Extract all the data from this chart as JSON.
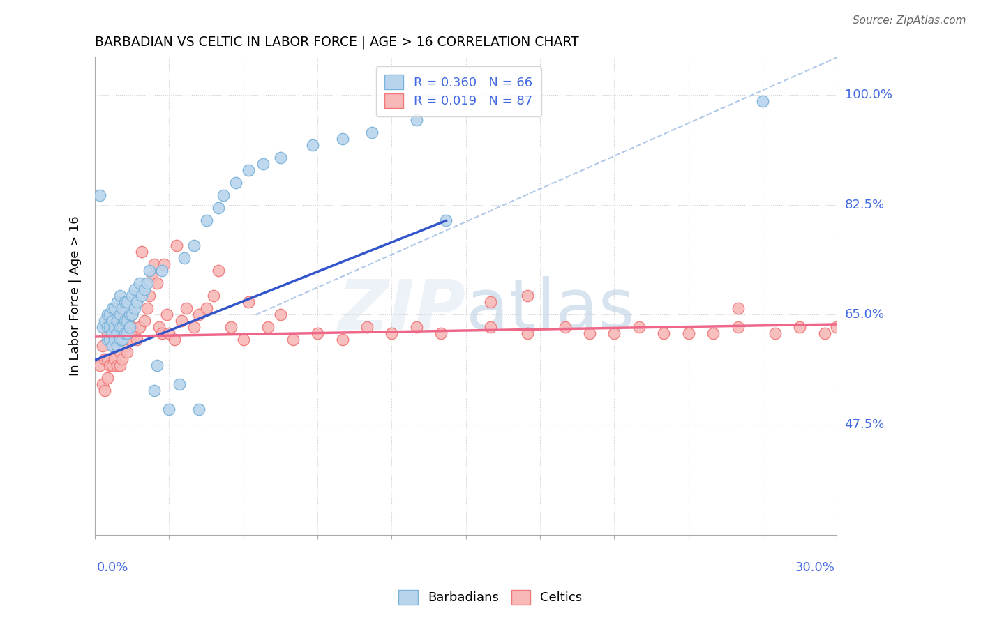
{
  "title": "BARBADIAN VS CELTIC IN LABOR FORCE | AGE > 16 CORRELATION CHART",
  "source": "Source: ZipAtlas.com",
  "ylabel": "In Labor Force | Age > 16",
  "ytick_positions": [
    0.475,
    0.65,
    0.825,
    1.0
  ],
  "ytick_labels": [
    "47.5%",
    "65.0%",
    "82.5%",
    "100.0%"
  ],
  "xlim": [
    0.0,
    0.3
  ],
  "ylim": [
    0.3,
    1.06
  ],
  "barbadian_color": "#7ab3d9",
  "barbadian_fill": "#b8d4ec",
  "celtic_color": "#f07878",
  "celtic_fill": "#f8b8b8",
  "trend_blue": "#3355cc",
  "trend_pink": "#ee6688",
  "ref_line_color": "#b0c8e8",
  "grid_color": "#d0d0d0",
  "axis_label_color": "#4169e1",
  "legend_label_1": "R = 0.360   N = 66",
  "legend_label_2": "R = 0.019   N = 87",
  "barb_trend": [
    0.0,
    0.578,
    0.142,
    0.8
  ],
  "celt_trend": [
    0.0,
    0.615,
    0.3,
    0.635
  ],
  "ref_line": [
    0.065,
    0.65,
    0.3,
    1.06
  ],
  "barbadian_x": [
    0.002,
    0.003,
    0.004,
    0.005,
    0.005,
    0.005,
    0.006,
    0.006,
    0.006,
    0.007,
    0.007,
    0.007,
    0.007,
    0.008,
    0.008,
    0.008,
    0.009,
    0.009,
    0.009,
    0.009,
    0.01,
    0.01,
    0.01,
    0.01,
    0.011,
    0.011,
    0.011,
    0.012,
    0.012,
    0.012,
    0.013,
    0.013,
    0.013,
    0.014,
    0.014,
    0.015,
    0.015,
    0.016,
    0.016,
    0.017,
    0.018,
    0.019,
    0.02,
    0.021,
    0.022,
    0.024,
    0.025,
    0.027,
    0.03,
    0.034,
    0.036,
    0.04,
    0.042,
    0.045,
    0.05,
    0.052,
    0.057,
    0.062,
    0.068,
    0.075,
    0.088,
    0.1,
    0.112,
    0.13,
    0.142,
    0.27
  ],
  "barbadian_y": [
    0.84,
    0.63,
    0.64,
    0.61,
    0.63,
    0.65,
    0.61,
    0.63,
    0.65,
    0.6,
    0.62,
    0.64,
    0.66,
    0.61,
    0.63,
    0.66,
    0.6,
    0.62,
    0.64,
    0.67,
    0.61,
    0.63,
    0.65,
    0.68,
    0.61,
    0.63,
    0.66,
    0.62,
    0.64,
    0.67,
    0.62,
    0.64,
    0.67,
    0.63,
    0.65,
    0.65,
    0.68,
    0.66,
    0.69,
    0.67,
    0.7,
    0.68,
    0.69,
    0.7,
    0.72,
    0.53,
    0.57,
    0.72,
    0.5,
    0.54,
    0.74,
    0.76,
    0.5,
    0.8,
    0.82,
    0.84,
    0.86,
    0.88,
    0.89,
    0.9,
    0.92,
    0.93,
    0.94,
    0.96,
    0.8,
    0.99
  ],
  "celtic_x": [
    0.002,
    0.003,
    0.003,
    0.004,
    0.004,
    0.005,
    0.005,
    0.005,
    0.006,
    0.006,
    0.006,
    0.007,
    0.007,
    0.007,
    0.008,
    0.008,
    0.008,
    0.009,
    0.009,
    0.009,
    0.01,
    0.01,
    0.01,
    0.01,
    0.011,
    0.011,
    0.011,
    0.012,
    0.012,
    0.013,
    0.013,
    0.014,
    0.015,
    0.015,
    0.016,
    0.017,
    0.018,
    0.019,
    0.02,
    0.021,
    0.022,
    0.023,
    0.024,
    0.025,
    0.026,
    0.027,
    0.028,
    0.029,
    0.03,
    0.032,
    0.033,
    0.035,
    0.037,
    0.04,
    0.042,
    0.045,
    0.048,
    0.05,
    0.055,
    0.06,
    0.062,
    0.07,
    0.075,
    0.08,
    0.09,
    0.1,
    0.11,
    0.12,
    0.13,
    0.14,
    0.16,
    0.175,
    0.19,
    0.2,
    0.21,
    0.22,
    0.23,
    0.24,
    0.25,
    0.26,
    0.275,
    0.285,
    0.295,
    0.3,
    0.16,
    0.175,
    0.26
  ],
  "celtic_y": [
    0.57,
    0.54,
    0.6,
    0.53,
    0.58,
    0.58,
    0.62,
    0.55,
    0.57,
    0.61,
    0.63,
    0.57,
    0.6,
    0.63,
    0.58,
    0.61,
    0.64,
    0.57,
    0.6,
    0.63,
    0.57,
    0.59,
    0.62,
    0.65,
    0.58,
    0.61,
    0.64,
    0.6,
    0.63,
    0.59,
    0.62,
    0.61,
    0.63,
    0.65,
    0.62,
    0.61,
    0.63,
    0.75,
    0.64,
    0.66,
    0.68,
    0.71,
    0.73,
    0.7,
    0.63,
    0.62,
    0.73,
    0.65,
    0.62,
    0.61,
    0.76,
    0.64,
    0.66,
    0.63,
    0.65,
    0.66,
    0.68,
    0.72,
    0.63,
    0.61,
    0.67,
    0.63,
    0.65,
    0.61,
    0.62,
    0.61,
    0.63,
    0.62,
    0.63,
    0.62,
    0.63,
    0.62,
    0.63,
    0.62,
    0.62,
    0.63,
    0.62,
    0.62,
    0.62,
    0.63,
    0.62,
    0.63,
    0.62,
    0.63,
    0.67,
    0.68,
    0.66
  ]
}
